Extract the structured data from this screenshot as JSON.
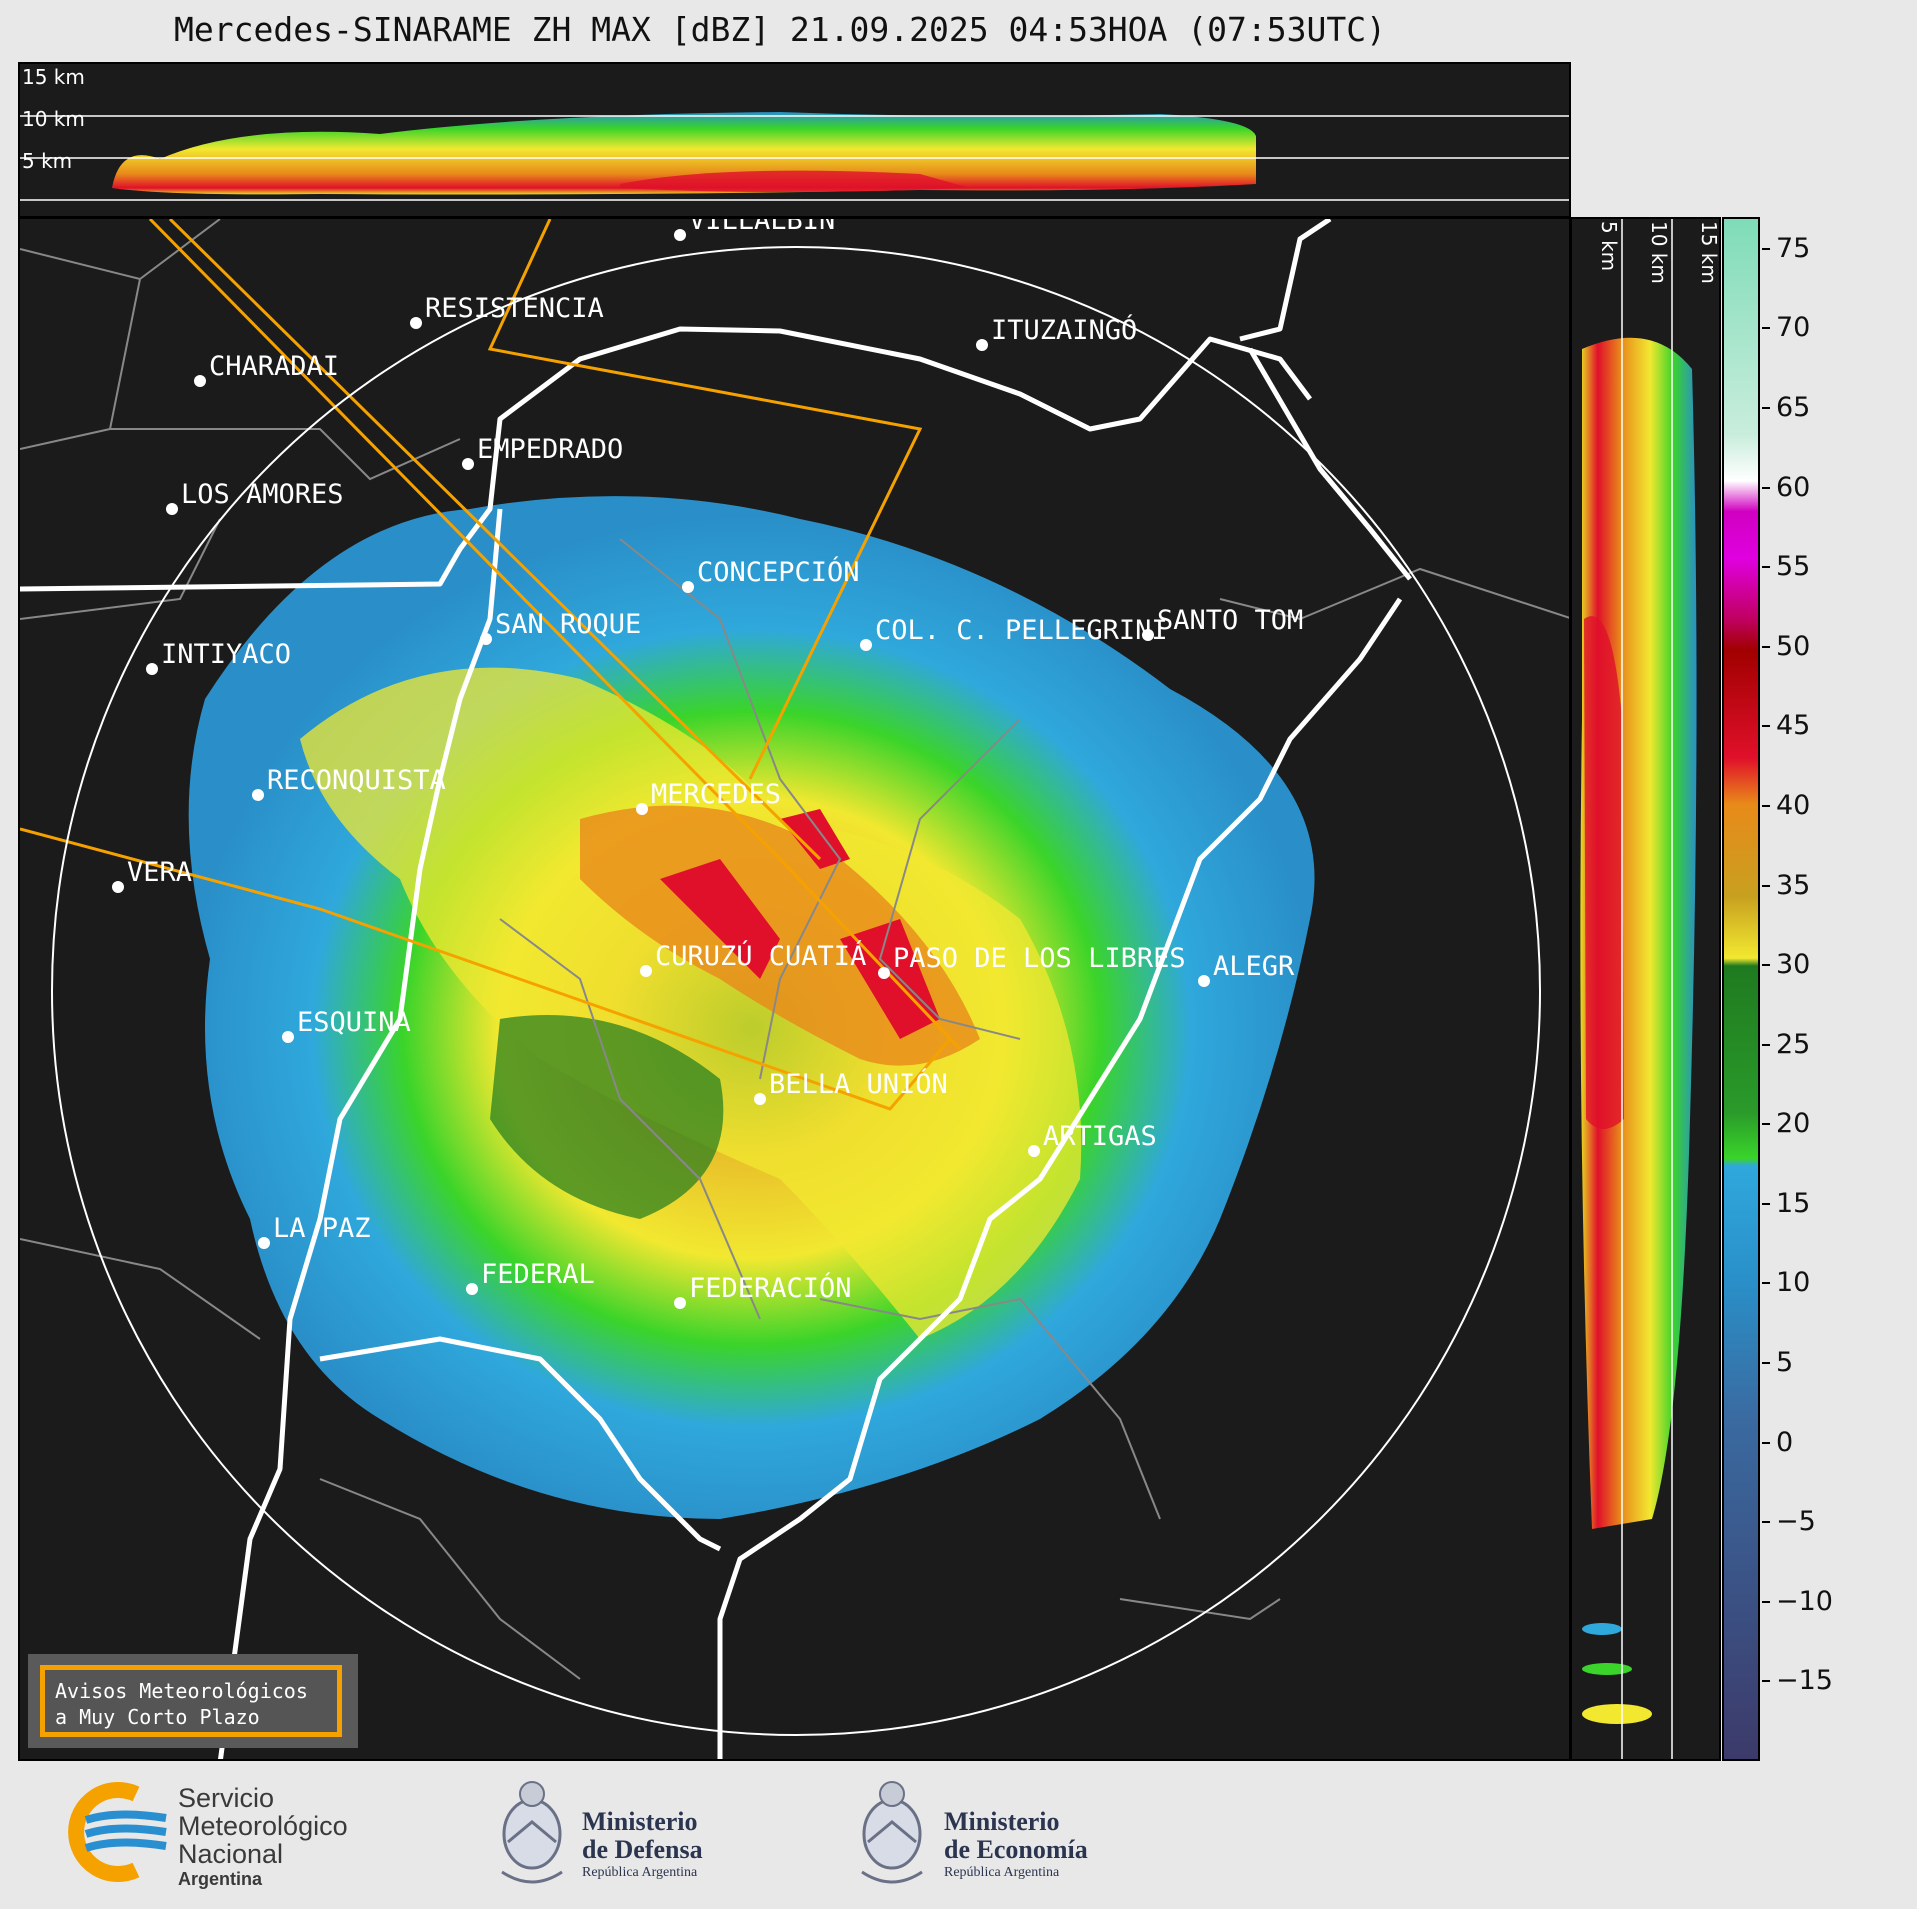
{
  "title": "Mercedes-SINARAME ZH MAX [dBZ] 21.09.2025 04:53HOA (07:53UTC)",
  "top_panel": {
    "height_labels": [
      "15 km",
      "10 km",
      "5 km"
    ]
  },
  "side_panel": {
    "height_labels": [
      "5 km",
      "10 km",
      "15 km"
    ]
  },
  "cities": [
    {
      "name": "VILLALBÍN"
    },
    {
      "name": "RESISTENCIA"
    },
    {
      "name": "ITUZAINGÓ"
    },
    {
      "name": "CHARADAI"
    },
    {
      "name": "EMPEDRADO"
    },
    {
      "name": "LOS AMORES"
    },
    {
      "name": "CONCEPCIÓN"
    },
    {
      "name": "SAN ROQUE"
    },
    {
      "name": "COL. C. PELLEGRINI"
    },
    {
      "name": "SANTO TOM"
    },
    {
      "name": "INTIYACO"
    },
    {
      "name": "RECONQUISTA"
    },
    {
      "name": "MERCEDES"
    },
    {
      "name": "VERA"
    },
    {
      "name": "PASO DE LOS LIBRES"
    },
    {
      "name": "CURUZÚ CUATIÁ"
    },
    {
      "name": "ALEGR"
    },
    {
      "name": "ESQUINA"
    },
    {
      "name": "BELLA UNIÓN"
    },
    {
      "name": "ARTIGAS"
    },
    {
      "name": "LA PAZ"
    },
    {
      "name": "FEDERAL"
    },
    {
      "name": "FEDERACIÓN"
    }
  ],
  "colorbar": {
    "unit": "dBZ",
    "ticks": [
      "75",
      "70",
      "65",
      "60",
      "55",
      "50",
      "45",
      "40",
      "35",
      "30",
      "25",
      "20",
      "15",
      "10",
      "5",
      "0",
      "−5",
      "−10",
      "−15"
    ],
    "range": [
      -20,
      77
    ],
    "colors": {
      "very_low": "#3c3a6a",
      "low_blue": "#2a8fc8",
      "light_blue": "#2fa8dc",
      "green": "#3ad42a",
      "dark_green": "#1f7a1f",
      "yellow": "#f2e830",
      "orange": "#e88a1a",
      "red": "#e0102a",
      "dark_red": "#a00000",
      "magenta": "#e000e0",
      "white": "#ffffff",
      "mint": "#7fdcb8"
    }
  },
  "avisos_box": {
    "line1": "Avisos Meteorológicos",
    "line2": "a Muy Corto Plazo"
  },
  "logos": {
    "smn": {
      "line1": "Servicio",
      "line2": "Meteorológico",
      "line3": "Nacional",
      "line4": "Argentina"
    },
    "defensa": {
      "line1": "Ministerio",
      "line2": "de Defensa",
      "line3": "República Argentina"
    },
    "economia": {
      "line1": "Ministerio",
      "line2": "de Economía",
      "line3": "República Argentina"
    }
  }
}
